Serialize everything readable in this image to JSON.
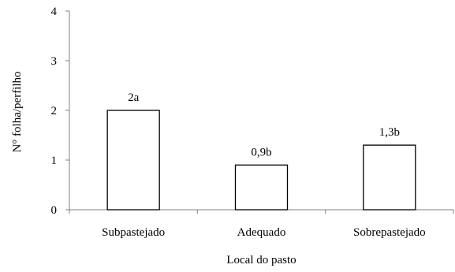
{
  "chart_data": {
    "type": "bar",
    "categories": [
      "Subpastejado",
      "Adequado",
      "Sobrepastejado"
    ],
    "values": [
      2,
      0.9,
      1.3
    ],
    "data_labels": [
      "2a",
      "0,9b",
      "1,3b"
    ],
    "xlabel": "Local do pasto",
    "ylabel": "N° folha/perfilho",
    "ylim": [
      0,
      4
    ],
    "yticks": [
      "0",
      "1",
      "2",
      "3",
      "4"
    ],
    "grid": false,
    "legend": "none",
    "bar_fill": "#ffffff",
    "bar_stroke": "#000000"
  }
}
